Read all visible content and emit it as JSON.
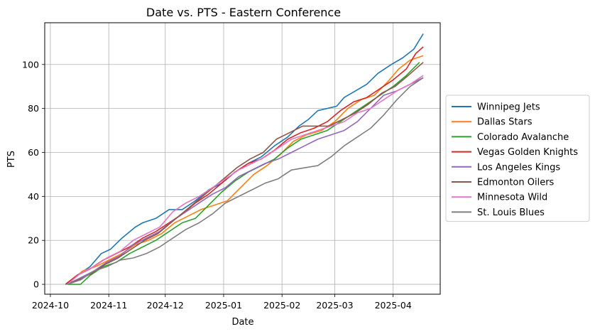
{
  "chart_data": {
    "type": "line",
    "title": "Date vs. PTS - Eastern Conference",
    "xlabel": "Date",
    "ylabel": "PTS",
    "x_ticks": [
      "2024-10",
      "2024-11",
      "2024-12",
      "2025-01",
      "2025-02",
      "2025-03",
      "2025-04"
    ],
    "y_ticks": [
      0,
      20,
      40,
      60,
      80,
      100
    ],
    "xlim": [
      "2024-09-28",
      "2025-04-26"
    ],
    "ylim": [
      -4.5,
      119
    ],
    "grid": true,
    "legend_position": "center-right outside",
    "series": [
      {
        "name": "Winnipeg Jets",
        "color": "#1f77b4",
        "points": [
          [
            "2024-10-09",
            0
          ],
          [
            "2024-10-15",
            4
          ],
          [
            "2024-10-22",
            8
          ],
          [
            "2024-10-28",
            14
          ],
          [
            "2024-11-02",
            16
          ],
          [
            "2024-11-08",
            21
          ],
          [
            "2024-11-15",
            26
          ],
          [
            "2024-11-19",
            28
          ],
          [
            "2024-11-26",
            30
          ],
          [
            "2024-12-03",
            34
          ],
          [
            "2024-12-10",
            34
          ],
          [
            "2024-12-17",
            38
          ],
          [
            "2024-12-24",
            43
          ],
          [
            "2024-12-31",
            46
          ],
          [
            "2025-01-07",
            51
          ],
          [
            "2025-01-14",
            55
          ],
          [
            "2025-01-21",
            58
          ],
          [
            "2025-01-28",
            63
          ],
          [
            "2025-02-04",
            67
          ],
          [
            "2025-02-10",
            72
          ],
          [
            "2025-02-15",
            75
          ],
          [
            "2025-02-20",
            79
          ],
          [
            "2025-03-02",
            81
          ],
          [
            "2025-03-06",
            85
          ],
          [
            "2025-03-12",
            88
          ],
          [
            "2025-03-18",
            91
          ],
          [
            "2025-03-24",
            96
          ],
          [
            "2025-03-31",
            100
          ],
          [
            "2025-04-06",
            103
          ],
          [
            "2025-04-12",
            107
          ],
          [
            "2025-04-17",
            114
          ]
        ]
      },
      {
        "name": "Dallas Stars",
        "color": "#ff7f0e",
        "points": [
          [
            "2024-10-10",
            0
          ],
          [
            "2024-10-18",
            6
          ],
          [
            "2024-10-25",
            8
          ],
          [
            "2024-11-01",
            11
          ],
          [
            "2024-11-08",
            14
          ],
          [
            "2024-11-15",
            18
          ],
          [
            "2024-11-22",
            20
          ],
          [
            "2024-11-29",
            23
          ],
          [
            "2024-12-06",
            28
          ],
          [
            "2024-12-13",
            31
          ],
          [
            "2024-12-20",
            34
          ],
          [
            "2024-12-27",
            36
          ],
          [
            "2025-01-03",
            38
          ],
          [
            "2025-01-10",
            44
          ],
          [
            "2025-01-17",
            50
          ],
          [
            "2025-01-24",
            54
          ],
          [
            "2025-01-31",
            59
          ],
          [
            "2025-02-07",
            65
          ],
          [
            "2025-02-14",
            68
          ],
          [
            "2025-02-22",
            70
          ],
          [
            "2025-03-01",
            74
          ],
          [
            "2025-03-08",
            80
          ],
          [
            "2025-03-15",
            84
          ],
          [
            "2025-03-22",
            86
          ],
          [
            "2025-03-29",
            92
          ],
          [
            "2025-04-04",
            98
          ],
          [
            "2025-04-10",
            102
          ],
          [
            "2025-04-17",
            104
          ]
        ]
      },
      {
        "name": "Colorado Avalanche",
        "color": "#2ca02c",
        "points": [
          [
            "2024-10-10",
            0
          ],
          [
            "2024-10-17",
            0
          ],
          [
            "2024-10-22",
            4
          ],
          [
            "2024-10-29",
            8
          ],
          [
            "2024-11-05",
            10
          ],
          [
            "2024-11-12",
            14
          ],
          [
            "2024-11-19",
            17
          ],
          [
            "2024-11-26",
            20
          ],
          [
            "2024-12-03",
            24
          ],
          [
            "2024-12-10",
            28
          ],
          [
            "2024-12-17",
            30
          ],
          [
            "2024-12-24",
            36
          ],
          [
            "2024-12-31",
            42
          ],
          [
            "2025-01-07",
            47
          ],
          [
            "2025-01-14",
            51
          ],
          [
            "2025-01-21",
            54
          ],
          [
            "2025-01-28",
            57
          ],
          [
            "2025-02-04",
            62
          ],
          [
            "2025-02-11",
            66
          ],
          [
            "2025-02-18",
            68
          ],
          [
            "2025-02-25",
            70
          ],
          [
            "2025-03-04",
            74
          ],
          [
            "2025-03-11",
            78
          ],
          [
            "2025-03-18",
            82
          ],
          [
            "2025-03-25",
            86
          ],
          [
            "2025-04-01",
            90
          ],
          [
            "2025-04-08",
            95
          ],
          [
            "2025-04-15",
            101
          ]
        ]
      },
      {
        "name": "Vegas Golden Knights",
        "color": "#d62728",
        "points": [
          [
            "2024-10-09",
            0
          ],
          [
            "2024-10-15",
            4
          ],
          [
            "2024-10-22",
            7
          ],
          [
            "2024-10-29",
            11
          ],
          [
            "2024-11-05",
            14
          ],
          [
            "2024-11-12",
            17
          ],
          [
            "2024-11-19",
            21
          ],
          [
            "2024-11-26",
            24
          ],
          [
            "2024-12-03",
            28
          ],
          [
            "2024-12-10",
            32
          ],
          [
            "2024-12-17",
            37
          ],
          [
            "2024-12-24",
            41
          ],
          [
            "2024-12-31",
            46
          ],
          [
            "2025-01-07",
            51
          ],
          [
            "2025-01-14",
            55
          ],
          [
            "2025-01-21",
            57
          ],
          [
            "2025-01-28",
            61
          ],
          [
            "2025-02-04",
            66
          ],
          [
            "2025-02-11",
            69
          ],
          [
            "2025-02-18",
            71
          ],
          [
            "2025-02-25",
            74
          ],
          [
            "2025-03-04",
            79
          ],
          [
            "2025-03-11",
            83
          ],
          [
            "2025-03-18",
            85
          ],
          [
            "2025-03-25",
            89
          ],
          [
            "2025-04-01",
            93
          ],
          [
            "2025-04-08",
            98
          ],
          [
            "2025-04-13",
            105
          ],
          [
            "2025-04-17",
            108
          ]
        ]
      },
      {
        "name": "Los Angeles Kings",
        "color": "#9467bd",
        "points": [
          [
            "2024-10-10",
            0
          ],
          [
            "2024-10-17",
            3
          ],
          [
            "2024-10-24",
            6
          ],
          [
            "2024-10-31",
            10
          ],
          [
            "2024-11-07",
            13
          ],
          [
            "2024-11-14",
            18
          ],
          [
            "2024-11-21",
            21
          ],
          [
            "2024-11-28",
            24
          ],
          [
            "2024-12-05",
            29
          ],
          [
            "2024-12-12",
            33
          ],
          [
            "2024-12-19",
            37
          ],
          [
            "2024-12-26",
            41
          ],
          [
            "2025-01-02",
            44
          ],
          [
            "2025-01-09",
            49
          ],
          [
            "2025-01-16",
            52
          ],
          [
            "2025-01-23",
            55
          ],
          [
            "2025-01-30",
            57
          ],
          [
            "2025-02-06",
            60
          ],
          [
            "2025-02-13",
            63
          ],
          [
            "2025-02-20",
            66
          ],
          [
            "2025-02-27",
            68
          ],
          [
            "2025-03-06",
            70
          ],
          [
            "2025-03-13",
            74
          ],
          [
            "2025-03-20",
            80
          ],
          [
            "2025-03-27",
            86
          ],
          [
            "2025-04-03",
            88
          ],
          [
            "2025-04-10",
            91
          ],
          [
            "2025-04-17",
            94
          ]
        ]
      },
      {
        "name": "Edmonton Oilers",
        "color": "#8c564b",
        "points": [
          [
            "2024-10-09",
            0
          ],
          [
            "2024-10-16",
            2
          ],
          [
            "2024-10-23",
            5
          ],
          [
            "2024-10-30",
            9
          ],
          [
            "2024-11-06",
            12
          ],
          [
            "2024-11-13",
            16
          ],
          [
            "2024-11-20",
            20
          ],
          [
            "2024-11-27",
            23
          ],
          [
            "2024-12-04",
            28
          ],
          [
            "2024-12-11",
            33
          ],
          [
            "2024-12-18",
            38
          ],
          [
            "2024-12-25",
            43
          ],
          [
            "2025-01-01",
            48
          ],
          [
            "2025-01-08",
            53
          ],
          [
            "2025-01-15",
            57
          ],
          [
            "2025-01-22",
            60
          ],
          [
            "2025-01-29",
            66
          ],
          [
            "2025-02-05",
            69
          ],
          [
            "2025-02-12",
            72
          ],
          [
            "2025-02-19",
            72
          ],
          [
            "2025-02-26",
            72
          ],
          [
            "2025-03-05",
            75
          ],
          [
            "2025-03-12",
            78
          ],
          [
            "2025-03-19",
            82
          ],
          [
            "2025-03-26",
            87
          ],
          [
            "2025-04-02",
            90
          ],
          [
            "2025-04-09",
            95
          ],
          [
            "2025-04-17",
            101
          ]
        ]
      },
      {
        "name": "Minnesota Wild",
        "color": "#e377c2",
        "points": [
          [
            "2024-10-10",
            0
          ],
          [
            "2024-10-17",
            5
          ],
          [
            "2024-10-24",
            8
          ],
          [
            "2024-10-31",
            12
          ],
          [
            "2024-11-07",
            15
          ],
          [
            "2024-11-14",
            20
          ],
          [
            "2024-11-21",
            23
          ],
          [
            "2024-11-28",
            26
          ],
          [
            "2024-12-05",
            33
          ],
          [
            "2024-12-12",
            37
          ],
          [
            "2024-12-19",
            40
          ],
          [
            "2024-12-26",
            44
          ],
          [
            "2025-01-02",
            48
          ],
          [
            "2025-01-09",
            52
          ],
          [
            "2025-01-16",
            55
          ],
          [
            "2025-01-23",
            58
          ],
          [
            "2025-01-30",
            62
          ],
          [
            "2025-02-06",
            66
          ],
          [
            "2025-02-13",
            68
          ],
          [
            "2025-02-20",
            70
          ],
          [
            "2025-02-27",
            72
          ],
          [
            "2025-03-06",
            74
          ],
          [
            "2025-03-13",
            78
          ],
          [
            "2025-03-20",
            80
          ],
          [
            "2025-03-27",
            84
          ],
          [
            "2025-04-03",
            88
          ],
          [
            "2025-04-10",
            91
          ],
          [
            "2025-04-17",
            95
          ]
        ]
      },
      {
        "name": "St. Louis Blues",
        "color": "#7f7f7f",
        "points": [
          [
            "2024-10-10",
            0
          ],
          [
            "2024-10-17",
            2
          ],
          [
            "2024-10-24",
            6
          ],
          [
            "2024-10-31",
            8
          ],
          [
            "2024-11-07",
            11
          ],
          [
            "2024-11-14",
            12
          ],
          [
            "2024-11-21",
            14
          ],
          [
            "2024-11-28",
            17
          ],
          [
            "2024-12-05",
            21
          ],
          [
            "2024-12-12",
            25
          ],
          [
            "2024-12-19",
            28
          ],
          [
            "2024-12-26",
            32
          ],
          [
            "2025-01-02",
            37
          ],
          [
            "2025-01-09",
            40
          ],
          [
            "2025-01-16",
            43
          ],
          [
            "2025-01-23",
            46
          ],
          [
            "2025-01-30",
            48
          ],
          [
            "2025-02-06",
            52
          ],
          [
            "2025-02-13",
            53
          ],
          [
            "2025-02-20",
            54
          ],
          [
            "2025-02-27",
            58
          ],
          [
            "2025-03-06",
            63
          ],
          [
            "2025-03-13",
            67
          ],
          [
            "2025-03-20",
            71
          ],
          [
            "2025-03-27",
            77
          ],
          [
            "2025-04-03",
            84
          ],
          [
            "2025-04-10",
            90
          ],
          [
            "2025-04-17",
            94
          ]
        ]
      }
    ]
  }
}
